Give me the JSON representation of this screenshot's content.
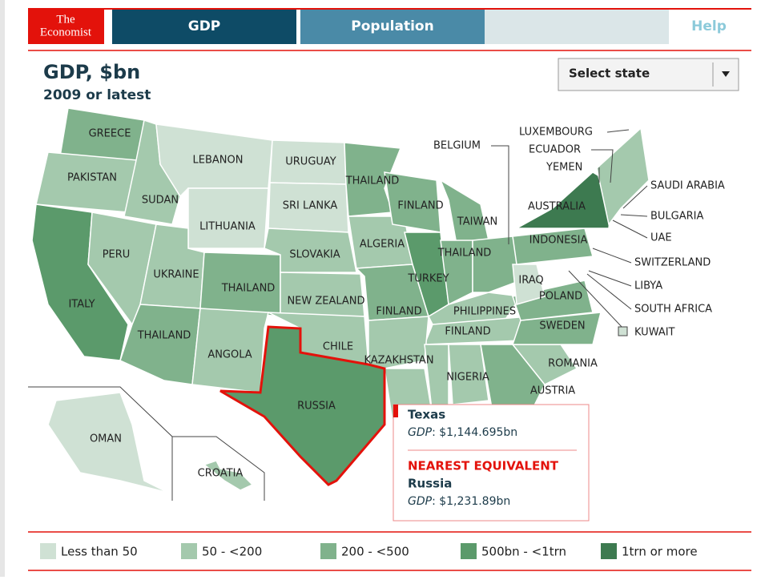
{
  "nav": {
    "logo": [
      "The",
      "Economist"
    ],
    "tabs": [
      "GDP",
      "Population",
      "Help"
    ]
  },
  "header": {
    "title": "GDP, $bn",
    "subtitle": "2009 or latest",
    "select": "Select state"
  },
  "map": {
    "labels": [
      "GREECE",
      "PAKISTAN",
      "SUDAN",
      "LEBANON",
      "URUGUAY",
      "THAILAND",
      "SRI LANKA",
      "LITHUANIA",
      "FINLAND",
      "TAIWAN",
      "ALGERIA",
      "PERU",
      "SLOVAKIA",
      "THAILAND",
      "UKRAINE",
      "TURKEY",
      "THAILAND",
      "IRAQ",
      "POLAND",
      "ITALY",
      "NEW ZEALAND",
      "FINLAND",
      "PHILIPPINES",
      "FINLAND",
      "SWEDEN",
      "THAILAND",
      "CHILE",
      "ANGOLA",
      "KAZAKHSTAN",
      "ROMANIA",
      "NIGERIA",
      "AUSTRIA",
      "RUSSIA",
      "OMAN",
      "CROATIA",
      "AUSTRALIA",
      "INDONESIA"
    ],
    "callouts": [
      "LUXEMBOURG",
      "ECUADOR",
      "YEMEN",
      "BELGIUM",
      "SAUDI ARABIA",
      "BULGARIA",
      "UAE",
      "SWITZERLAND",
      "LIBYA",
      "SOUTH AFRICA",
      "KUWAIT"
    ]
  },
  "tooltip": {
    "state": "Texas",
    "metric": "GDP",
    "value": ": $1,144.695bn",
    "heading": "NEAREST EQUIVALENT",
    "equivalent": "Russia",
    "equivalent_metric": "GDP",
    "equivalent_value": ": $1,231.89bn"
  },
  "legend": [
    {
      "label": "Less than 50",
      "color": "#cfe1d4"
    },
    {
      "label": "50 - <200",
      "color": "#a4c9ad"
    },
    {
      "label": "200 - <500",
      "color": "#80b28c"
    },
    {
      "label": "500bn - <1trn",
      "color": "#5b9a6b"
    },
    {
      "label": "1trn or more",
      "color": "#3d7a50"
    }
  ]
}
